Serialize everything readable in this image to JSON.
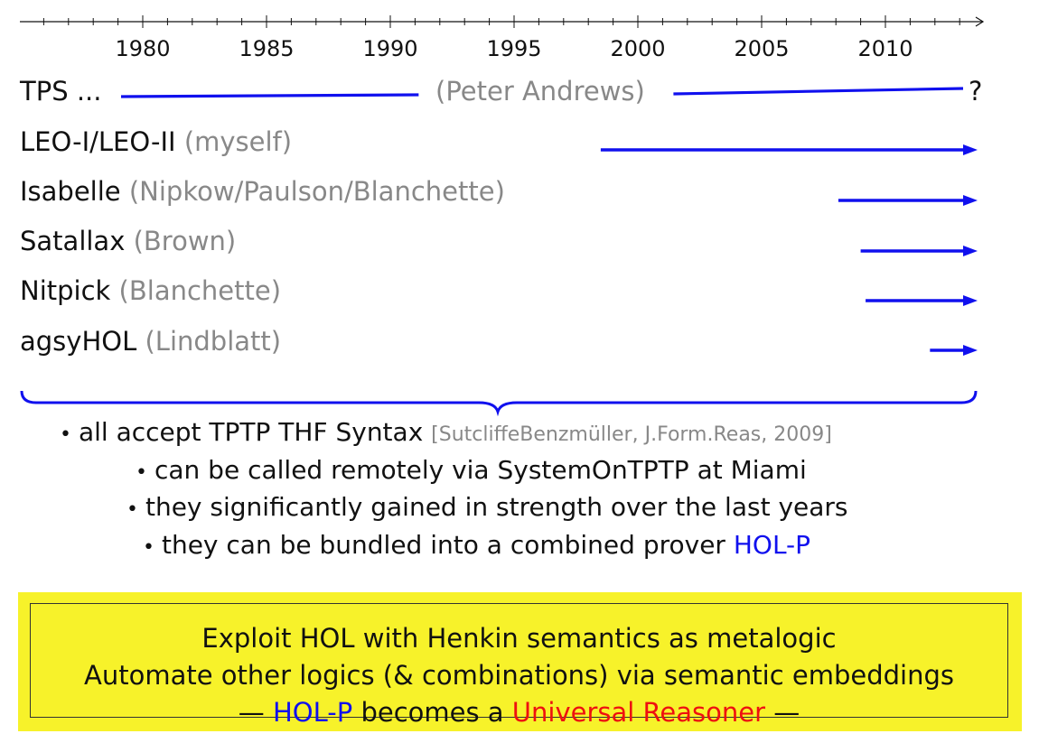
{
  "timeline": {
    "axis_start_year": 1975,
    "axis_end_year": 2014,
    "year_labels": [
      "1980",
      "1985",
      "1990",
      "1995",
      "2000",
      "2005",
      "2010"
    ],
    "line_color": "#1010ee",
    "tps": {
      "from": 1979,
      "to": 2013.2,
      "gap_from": 1991.4,
      "gap_to": 2001
    }
  },
  "rows": [
    {
      "name": "TPS ...",
      "who": "(Peter Andrews)",
      "end_mark": "?"
    },
    {
      "name": "LEO-I/LEO-II",
      "who": "(myself)",
      "start": 1998.5
    },
    {
      "name": "Isabelle",
      "who": "(Nipkow/Paulson/Blanchette)",
      "start": 2008.1
    },
    {
      "name": "Satallax",
      "who": "(Brown)",
      "start": 2009
    },
    {
      "name": "Nitpick",
      "who": "(Blanchette)",
      "start": 2009.2
    },
    {
      "name": "agsyHOL",
      "who": "(Lindblatt)",
      "start": 2011.8
    }
  ],
  "bullets": {
    "b1_text": "all accept TPTP THF Syntax",
    "b1_cite": "[SutcliffeBenzmüller, J.Form.Reas, 2009]",
    "b2_text": "can be called remotely via SystemOnTPTP at Miami",
    "b3_text": "they significantly gained in strength over the last years",
    "b4_text": "they can be bundled into a combined prover",
    "b4_highlight": "HOL-P",
    "bullet_glyph": "•"
  },
  "callout": {
    "line1": "Exploit HOL with Henkin semantics as metalogic",
    "line2": "Automate other logics (& combinations) via semantic embeddings",
    "line3_dash_left": "—",
    "line3_holp": "HOL-P",
    "line3_mid": "becomes a",
    "line3_universal": "Universal Reasoner",
    "line3_dash_right": "—",
    "background": "#f7f22a"
  }
}
